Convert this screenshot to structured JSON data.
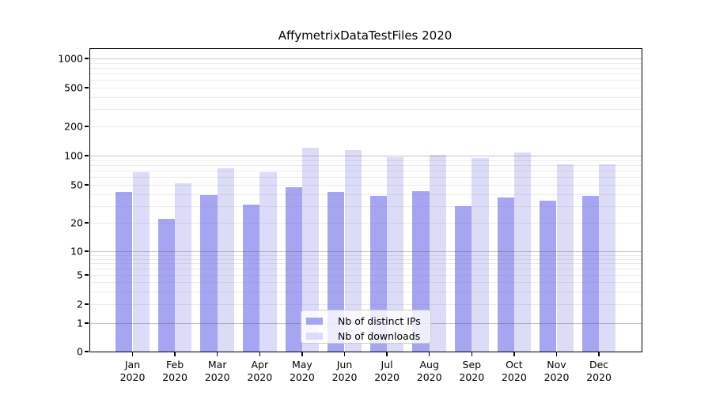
{
  "title": "AffymetrixDataTestFiles 2020",
  "legend": {
    "items": [
      {
        "label": "Nb of distinct IPs",
        "color": "#a5a5f2"
      },
      {
        "label": "Nb of downloads",
        "color": "#dcdcf8"
      }
    ]
  },
  "chart_data": {
    "type": "bar",
    "title": "AffymetrixDataTestFiles 2020",
    "categories": [
      "Jan",
      "Feb",
      "Mar",
      "Apr",
      "May",
      "Jun",
      "Jul",
      "Aug",
      "Sep",
      "Oct",
      "Nov",
      "Dec"
    ],
    "category_year": "2020",
    "series": [
      {
        "name": "Nb of distinct IPs",
        "color": "#a5a5f2",
        "values": [
          42,
          22,
          39,
          31,
          47,
          42,
          38,
          43,
          30,
          37,
          34,
          38
        ]
      },
      {
        "name": "Nb of downloads",
        "color": "#dcdcf8",
        "values": [
          67,
          52,
          74,
          67,
          120,
          115,
          97,
          101,
          95,
          107,
          81,
          81
        ]
      }
    ],
    "y_axis": {
      "scale": "symlog",
      "ticks": [
        0,
        1,
        2,
        5,
        10,
        20,
        50,
        100,
        200,
        500,
        1000
      ],
      "range": [
        0,
        1250
      ],
      "major_gridlines": [
        1,
        10,
        100,
        1000
      ],
      "minor_gridlines": [
        2,
        3,
        4,
        5,
        6,
        7,
        8,
        9,
        20,
        30,
        40,
        50,
        60,
        70,
        80,
        90,
        200,
        300,
        400,
        500,
        600,
        700,
        800,
        900
      ]
    },
    "x_axis": {
      "tick_label_line2": "2020"
    },
    "legend_position": "lower center",
    "grid": "both"
  },
  "colors": {
    "distinct_ips": "#a5a5f2",
    "downloads": "#dcdcf8",
    "spine": "#000000",
    "grid_major": "#c8c8c8",
    "grid_minor": "#ebebeb",
    "background": "#ffffff"
  }
}
